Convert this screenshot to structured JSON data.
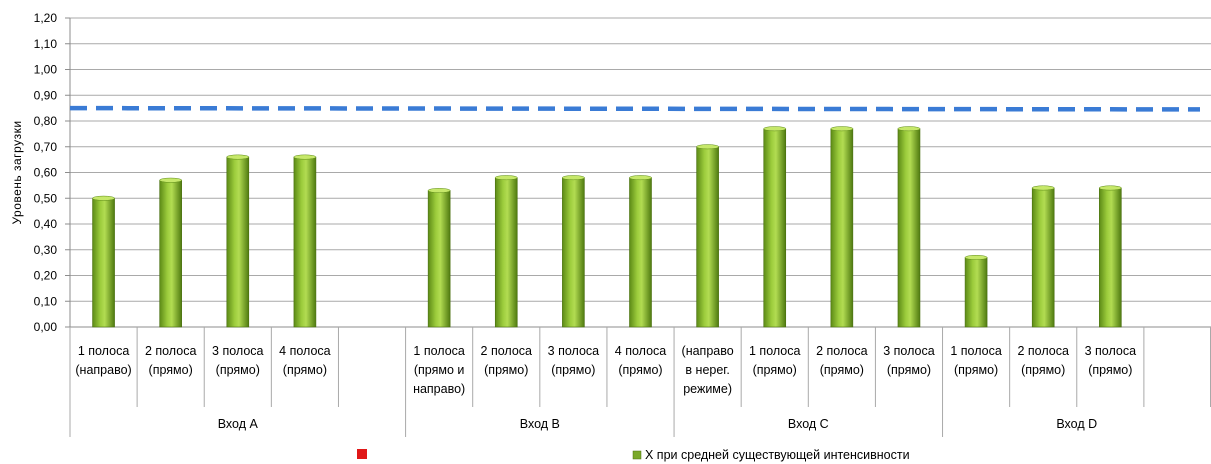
{
  "chart_data": {
    "type": "bar",
    "ylabel": "Уровень загрузки",
    "ylim": [
      0,
      1.2
    ],
    "ytick_step": 0.1,
    "yticks": [
      "0,00",
      "0,10",
      "0,20",
      "0,30",
      "0,40",
      "0,50",
      "0,60",
      "0,70",
      "0,80",
      "0,90",
      "1,00",
      "1,10",
      "1,20"
    ],
    "grid": true,
    "categories": [
      {
        "label": [
          "1 полоса",
          "(направо)"
        ],
        "value": 0.5
      },
      {
        "label": [
          "2 полоса",
          "(прямо)"
        ],
        "value": 0.57
      },
      {
        "label": [
          "3 полоса",
          "(прямо)"
        ],
        "value": 0.66
      },
      {
        "label": [
          "4 полоса",
          "(прямо)"
        ],
        "value": 0.66
      },
      {
        "label": [],
        "value": null
      },
      {
        "label": [
          "1 полоса",
          "(прямо и",
          "направо)"
        ],
        "value": 0.53
      },
      {
        "label": [
          "2 полоса",
          "(прямо)"
        ],
        "value": 0.58
      },
      {
        "label": [
          "3 полоса",
          "(прямо)"
        ],
        "value": 0.58
      },
      {
        "label": [
          "4 полоса",
          "(прямо)"
        ],
        "value": 0.58
      },
      {
        "label": [
          "(направо",
          "в нерег.",
          "режиме)"
        ],
        "value": 0.7
      },
      {
        "label": [
          "1 полоса",
          "(прямо)"
        ],
        "value": 0.77
      },
      {
        "label": [
          "2 полоса",
          "(прямо)"
        ],
        "value": 0.77
      },
      {
        "label": [
          "3 полоса",
          "(прямо)"
        ],
        "value": 0.77
      },
      {
        "label": [
          "1 полоса",
          "(прямо)"
        ],
        "value": 0.27
      },
      {
        "label": [
          "2 полоса",
          "(прямо)"
        ],
        "value": 0.54
      },
      {
        "label": [
          "3 полоса",
          "(прямо)"
        ],
        "value": 0.54
      },
      {
        "label": [],
        "value": null
      }
    ],
    "groups": [
      {
        "label": "Вход A",
        "start": 0,
        "count": 5
      },
      {
        "label": "Вход B",
        "start": 5,
        "count": 4
      },
      {
        "label": "Вход C",
        "start": 9,
        "count": 4
      },
      {
        "label": "Вход D",
        "start": 13,
        "count": 4
      }
    ],
    "series": [
      {
        "name": "X при средней существующей интенсивности",
        "color": "#7aa829"
      }
    ],
    "reference_line": {
      "value_start": 0.85,
      "value_end": 0.845,
      "color": "#3a7bd5",
      "style": "dashed"
    },
    "legend": {
      "position": "bottom",
      "items": [
        {
          "name": "",
          "color": "#e01818"
        },
        {
          "name": "X при средней существующей интенсивности",
          "color": "#7aa829"
        }
      ]
    }
  }
}
